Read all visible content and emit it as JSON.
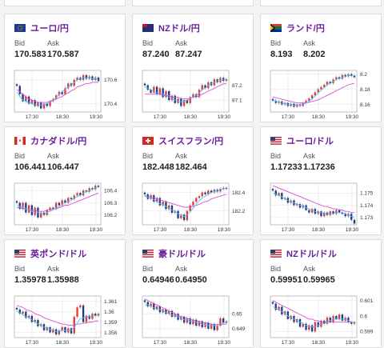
{
  "labels": {
    "bid": "Bid",
    "ask": "Ask"
  },
  "time_ticks": [
    "17:30",
    "18:30",
    "19:30"
  ],
  "colors": {
    "pair_title": "#6a1b9a",
    "candle_up": "#e53935",
    "candle_down": "#1e3a8a",
    "ma_fast": "#4fc3f7",
    "ma_slow": "#d64fd6"
  },
  "cards": [
    {
      "pair": "ユーロ/円",
      "flag": "eu-flag",
      "bid": "170.583",
      "ask": "170.587",
      "y_ticks": [
        170.6,
        170.4
      ],
      "y_range": [
        170.33,
        170.68
      ],
      "series": [
        170.55,
        170.48,
        170.42,
        170.46,
        170.4,
        170.43,
        170.38,
        170.41,
        170.36,
        170.4,
        170.38,
        170.42,
        170.44,
        170.47,
        170.5,
        170.48,
        170.53,
        170.57,
        170.55,
        170.6,
        170.62,
        170.6,
        170.64,
        170.61,
        170.63,
        170.6,
        170.62,
        170.59
      ],
      "ma_fast": [
        170.5,
        170.46,
        170.43,
        170.42,
        170.41,
        170.4,
        170.39,
        170.38,
        170.39,
        170.39,
        170.4,
        170.41,
        170.43,
        170.45,
        170.48,
        170.5,
        170.52,
        170.54,
        170.56,
        170.58,
        170.6,
        170.61,
        170.62,
        170.62,
        170.62,
        170.61,
        170.61,
        170.6
      ],
      "ma_slow": [
        170.52,
        170.5,
        170.48,
        170.46,
        170.44,
        170.43,
        170.42,
        170.41,
        170.41,
        170.41,
        170.41,
        170.42,
        170.43,
        170.44,
        170.45,
        170.46,
        170.48,
        170.49,
        170.51,
        170.52,
        170.54,
        170.55,
        170.56,
        170.57,
        170.57,
        170.58,
        170.58,
        170.58
      ]
    },
    {
      "pair": "NZドル/円",
      "flag": "nz-flag",
      "bid": "87.240",
      "ask": "87.247",
      "y_ticks": [
        87.2,
        87.1
      ],
      "y_range": [
        87.02,
        87.3
      ],
      "series": [
        87.2,
        87.17,
        87.15,
        87.19,
        87.14,
        87.18,
        87.12,
        87.16,
        87.1,
        87.13,
        87.08,
        87.11,
        87.06,
        87.1,
        87.08,
        87.12,
        87.14,
        87.12,
        87.17,
        87.2,
        87.18,
        87.22,
        87.2,
        87.24,
        87.22,
        87.25,
        87.23,
        87.24
      ],
      "ma_fast": [
        87.19,
        87.18,
        87.17,
        87.16,
        87.15,
        87.15,
        87.14,
        87.13,
        87.12,
        87.11,
        87.1,
        87.09,
        87.09,
        87.09,
        87.1,
        87.11,
        87.12,
        87.13,
        87.15,
        87.17,
        87.18,
        87.2,
        87.21,
        87.22,
        87.23,
        87.23,
        87.24,
        87.24
      ],
      "ma_slow": [
        87.14,
        87.14,
        87.14,
        87.14,
        87.14,
        87.14,
        87.13,
        87.13,
        87.13,
        87.12,
        87.12,
        87.12,
        87.11,
        87.11,
        87.11,
        87.11,
        87.12,
        87.12,
        87.13,
        87.14,
        87.15,
        87.16,
        87.17,
        87.18,
        87.19,
        87.2,
        87.21,
        87.21
      ]
    },
    {
      "pair": "ランド/円",
      "flag": "za-flag",
      "bid": "8.193",
      "ask": "8.202",
      "y_ticks": [
        8.2,
        8.18,
        8.16
      ],
      "y_range": [
        8.15,
        8.205
      ],
      "series": [
        8.165,
        8.162,
        8.164,
        8.16,
        8.162,
        8.158,
        8.161,
        8.157,
        8.16,
        8.158,
        8.162,
        8.165,
        8.168,
        8.172,
        8.176,
        8.18,
        8.183,
        8.186,
        8.19,
        8.188,
        8.193,
        8.196,
        8.194,
        8.199,
        8.197,
        8.2,
        8.198,
        8.196
      ],
      "ma_fast": [
        8.166,
        8.164,
        8.163,
        8.162,
        8.161,
        8.16,
        8.16,
        8.159,
        8.159,
        8.159,
        8.16,
        8.162,
        8.164,
        8.167,
        8.171,
        8.175,
        8.179,
        8.182,
        8.186,
        8.188,
        8.19,
        8.193,
        8.194,
        8.196,
        8.197,
        8.198,
        8.198,
        8.198
      ],
      "ma_slow": [
        8.17,
        8.169,
        8.168,
        8.167,
        8.166,
        8.165,
        8.164,
        8.163,
        8.162,
        8.162,
        8.162,
        8.162,
        8.163,
        8.164,
        8.165,
        8.166,
        8.168,
        8.17,
        8.172,
        8.174,
        8.176,
        8.178,
        8.18,
        8.182,
        8.184,
        8.186,
        8.187,
        8.188
      ]
    },
    {
      "pair": "カナダドル/円",
      "flag": "ca-flag",
      "bid": "106.441",
      "ask": "106.447",
      "y_ticks": [
        106.4,
        106.3,
        106.2
      ],
      "y_range": [
        106.12,
        106.46
      ],
      "series": [
        106.3,
        106.25,
        106.3,
        106.22,
        106.28,
        106.2,
        106.26,
        106.18,
        106.22,
        106.2,
        106.24,
        106.26,
        106.25,
        106.3,
        106.28,
        106.32,
        106.3,
        106.34,
        106.33,
        106.36,
        106.38,
        106.36,
        106.4,
        106.39,
        106.42,
        106.41,
        106.44,
        106.43
      ],
      "ma_fast": [
        106.28,
        106.27,
        106.26,
        106.25,
        106.24,
        106.23,
        106.22,
        106.22,
        106.21,
        106.21,
        106.22,
        106.23,
        106.24,
        106.26,
        106.27,
        106.29,
        106.3,
        106.31,
        106.32,
        106.34,
        106.35,
        106.36,
        106.38,
        106.39,
        106.4,
        106.41,
        106.42,
        106.43
      ],
      "ma_slow": [
        106.26,
        106.26,
        106.25,
        106.25,
        106.24,
        106.24,
        106.24,
        106.23,
        106.23,
        106.23,
        106.24,
        106.24,
        106.25,
        106.25,
        106.26,
        106.27,
        106.28,
        106.28,
        106.29,
        106.3,
        106.31,
        106.32,
        106.33,
        106.34,
        106.35,
        106.36,
        106.37,
        106.38
      ]
    },
    {
      "pair": "スイスフラン/円",
      "flag": "ch-flag",
      "bid": "182.448",
      "ask": "182.464",
      "y_ticks": [
        182.4,
        182.2
      ],
      "y_range": [
        182.05,
        182.5
      ],
      "series": [
        182.38,
        182.33,
        182.37,
        182.3,
        182.34,
        182.26,
        182.3,
        182.22,
        182.26,
        182.18,
        182.2,
        182.12,
        182.16,
        182.1,
        182.2,
        182.26,
        182.3,
        182.34,
        182.36,
        182.4,
        182.38,
        182.42,
        182.4,
        182.43,
        182.41,
        182.44,
        182.45,
        182.44
      ],
      "ma_fast": [
        182.37,
        182.35,
        182.34,
        182.32,
        182.3,
        182.28,
        182.27,
        182.25,
        182.23,
        182.21,
        182.19,
        182.17,
        182.15,
        182.14,
        182.16,
        182.19,
        182.23,
        182.27,
        182.31,
        182.34,
        182.36,
        182.38,
        182.4,
        182.41,
        182.42,
        182.43,
        182.44,
        182.44
      ],
      "ma_slow": [
        182.36,
        182.35,
        182.35,
        182.34,
        182.33,
        182.32,
        182.31,
        182.3,
        182.29,
        182.28,
        182.27,
        182.26,
        182.25,
        182.24,
        182.24,
        182.24,
        182.25,
        182.26,
        182.27,
        182.29,
        182.3,
        182.31,
        182.33,
        182.34,
        182.35,
        182.36,
        182.37,
        182.38
      ]
    },
    {
      "pair": "ユーロ/ドル",
      "flag": "eu-us-flag",
      "bid": "1.17233",
      "ask": "1.17236",
      "y_ticks": [
        1.175,
        1.174,
        1.173
      ],
      "y_range": [
        1.1724,
        1.1758
      ],
      "series": [
        1.1752,
        1.1748,
        1.175,
        1.1745,
        1.1746,
        1.1742,
        1.1744,
        1.174,
        1.1741,
        1.1738,
        1.174,
        1.1736,
        1.1734,
        1.1737,
        1.1733,
        1.1735,
        1.1731,
        1.1734,
        1.1732,
        1.1735,
        1.1733,
        1.1736,
        1.1734,
        1.1733,
        1.1731,
        1.1733,
        1.1728,
        1.1725
      ],
      "ma_fast": [
        1.175,
        1.1749,
        1.1748,
        1.1747,
        1.1745,
        1.1744,
        1.1743,
        1.1742,
        1.1741,
        1.174,
        1.1739,
        1.1738,
        1.1737,
        1.1736,
        1.1735,
        1.1734,
        1.1734,
        1.1733,
        1.1733,
        1.1733,
        1.1733,
        1.1734,
        1.1734,
        1.1734,
        1.1733,
        1.1732,
        1.1731,
        1.173
      ],
      "ma_slow": [
        1.1756,
        1.1755,
        1.1754,
        1.1753,
        1.1752,
        1.1751,
        1.175,
        1.1749,
        1.1748,
        1.1747,
        1.1746,
        1.1745,
        1.1744,
        1.1743,
        1.1742,
        1.1741,
        1.174,
        1.1739,
        1.1739,
        1.1738,
        1.1737,
        1.1737,
        1.1736,
        1.1736,
        1.1735,
        1.1735,
        1.1734,
        1.1734
      ]
    },
    {
      "pair": "英ポンド/ドル",
      "flag": "uk-us-flag",
      "bid": "1.35978",
      "ask": "1.35988",
      "y_ticks": [
        1.361,
        1.36,
        1.359,
        1.358
      ],
      "y_range": [
        1.3575,
        1.3615
      ],
      "series": [
        1.3602,
        1.3598,
        1.36,
        1.3594,
        1.3596,
        1.359,
        1.3592,
        1.3586,
        1.3588,
        1.3582,
        1.3585,
        1.358,
        1.3583,
        1.3578,
        1.3582,
        1.3585,
        1.358,
        1.3584,
        1.3579,
        1.3595,
        1.3604,
        1.3606,
        1.359,
        1.3596,
        1.3593,
        1.3598,
        1.3596,
        1.3598
      ],
      "ma_fast": [
        1.36,
        1.3599,
        1.3597,
        1.3595,
        1.3594,
        1.3592,
        1.359,
        1.3588,
        1.3587,
        1.3585,
        1.3584,
        1.3583,
        1.3582,
        1.3581,
        1.3581,
        1.3582,
        1.3582,
        1.3582,
        1.3582,
        1.3585,
        1.3589,
        1.3593,
        1.3594,
        1.3595,
        1.3595,
        1.3596,
        1.3596,
        1.3597
      ],
      "ma_slow": [
        1.3606,
        1.3605,
        1.3604,
        1.3602,
        1.3601,
        1.36,
        1.3598,
        1.3597,
        1.3596,
        1.3594,
        1.3593,
        1.3592,
        1.3591,
        1.359,
        1.3589,
        1.3588,
        1.3588,
        1.3587,
        1.3587,
        1.3587,
        1.3588,
        1.3588,
        1.3589,
        1.3589,
        1.359,
        1.359,
        1.3591,
        1.3591
      ]
    },
    {
      "pair": "豪ドル/ドル",
      "flag": "au-us-flag",
      "bid": "0.64946",
      "ask": "0.64950",
      "y_ticks": [
        0.65,
        0.649
      ],
      "y_range": [
        0.6484,
        0.6512
      ],
      "series": [
        0.6508,
        0.6505,
        0.6507,
        0.6503,
        0.6505,
        0.6501,
        0.6503,
        0.65,
        0.6502,
        0.6498,
        0.65,
        0.6496,
        0.6498,
        0.6494,
        0.6497,
        0.6493,
        0.6496,
        0.6492,
        0.6495,
        0.6491,
        0.6494,
        0.649,
        0.6493,
        0.6489,
        0.6492,
        0.6497,
        0.6494,
        0.6495
      ],
      "ma_fast": [
        0.6506,
        0.6506,
        0.6505,
        0.6504,
        0.6503,
        0.6503,
        0.6502,
        0.6501,
        0.65,
        0.6499,
        0.6499,
        0.6498,
        0.6497,
        0.6496,
        0.6496,
        0.6495,
        0.6495,
        0.6494,
        0.6494,
        0.6493,
        0.6493,
        0.6492,
        0.6492,
        0.6492,
        0.6492,
        0.6493,
        0.6494,
        0.6494
      ],
      "ma_slow": [
        0.651,
        0.6509,
        0.6508,
        0.6507,
        0.6506,
        0.6505,
        0.6504,
        0.6503,
        0.6502,
        0.6501,
        0.65,
        0.6499,
        0.6498,
        0.6498,
        0.6497,
        0.6496,
        0.6496,
        0.6495,
        0.6495,
        0.6494,
        0.6494,
        0.6494,
        0.6493,
        0.6493,
        0.6493,
        0.6493,
        0.6493,
        0.6493
      ]
    },
    {
      "pair": "NZドル/ドル",
      "flag": "nz-us-flag",
      "bid": "0.59951",
      "ask": "0.59965",
      "y_ticks": [
        0.601,
        0.6,
        0.599
      ],
      "y_range": [
        0.5986,
        0.6013
      ],
      "series": [
        0.6008,
        0.6004,
        0.6006,
        0.6001,
        0.6003,
        0.5998,
        0.6,
        0.5996,
        0.5998,
        0.5993,
        0.5995,
        0.5991,
        0.5994,
        0.599,
        0.5996,
        0.5993,
        0.5997,
        0.5995,
        0.5999,
        0.5996,
        0.6,
        0.5998,
        0.6001,
        0.5997,
        0.5999,
        0.5996,
        0.5995,
        0.5996
      ],
      "ma_fast": [
        0.6006,
        0.6005,
        0.6004,
        0.6003,
        0.6002,
        0.6,
        0.5999,
        0.5998,
        0.5997,
        0.5996,
        0.5995,
        0.5994,
        0.5993,
        0.5993,
        0.5993,
        0.5994,
        0.5995,
        0.5995,
        0.5996,
        0.5997,
        0.5998,
        0.5998,
        0.5998,
        0.5998,
        0.5998,
        0.5997,
        0.5996,
        0.5996
      ],
      "ma_slow": [
        0.601,
        0.6009,
        0.6008,
        0.6007,
        0.6006,
        0.6005,
        0.6004,
        0.6003,
        0.6002,
        0.6001,
        0.6,
        0.5999,
        0.5998,
        0.5998,
        0.5997,
        0.5997,
        0.5996,
        0.5996,
        0.5996,
        0.5996,
        0.5996,
        0.5996,
        0.5996,
        0.5996,
        0.5996,
        0.5996,
        0.5996,
        0.5996
      ]
    }
  ]
}
